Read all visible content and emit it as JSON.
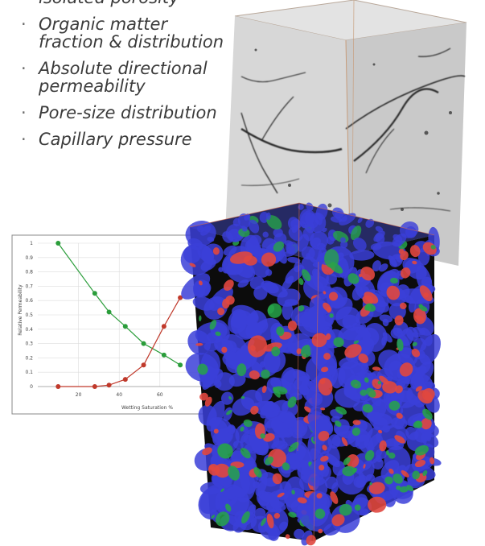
{
  "bullets": [
    {
      "text": "isolated porosity"
    },
    {
      "text": "Organic matter fraction & distribution"
    },
    {
      "text": "Absolute directional permeability"
    },
    {
      "text": "Pore-size distribution"
    },
    {
      "text": "Capillary pressure"
    }
  ],
  "bullet_glyph": "·",
  "colors": {
    "pore_blue": "#3b3fd8",
    "phase_red": "#e0473f",
    "phase_green": "#27a34a",
    "wetting_curve": "#2a9d3a",
    "nonwetting_curve": "#c0392b"
  },
  "chart_data": {
    "type": "line",
    "xlabel": "Wetting Saturation %",
    "ylabel": "Relative Permeability",
    "xlim": [
      0,
      100
    ],
    "ylim": [
      0,
      1
    ],
    "x_ticks": [
      "20",
      "40",
      "60"
    ],
    "y_ticks": [
      "0",
      "0.1",
      "0.2",
      "0.3",
      "0.4",
      "0.5",
      "0.6",
      "0.7",
      "0.8",
      "0.9",
      "1"
    ],
    "grid": true,
    "series": [
      {
        "color": "#2a9d3a",
        "x": [
          10,
          28,
          35,
          43,
          52,
          62,
          70
        ],
        "y": [
          1.0,
          0.65,
          0.52,
          0.42,
          0.3,
          0.22,
          0.15
        ]
      },
      {
        "color": "#c0392b",
        "x": [
          10,
          28,
          35,
          43,
          52,
          62,
          70
        ],
        "y": [
          0.0,
          0.0,
          0.01,
          0.05,
          0.15,
          0.42,
          0.62
        ]
      }
    ]
  }
}
